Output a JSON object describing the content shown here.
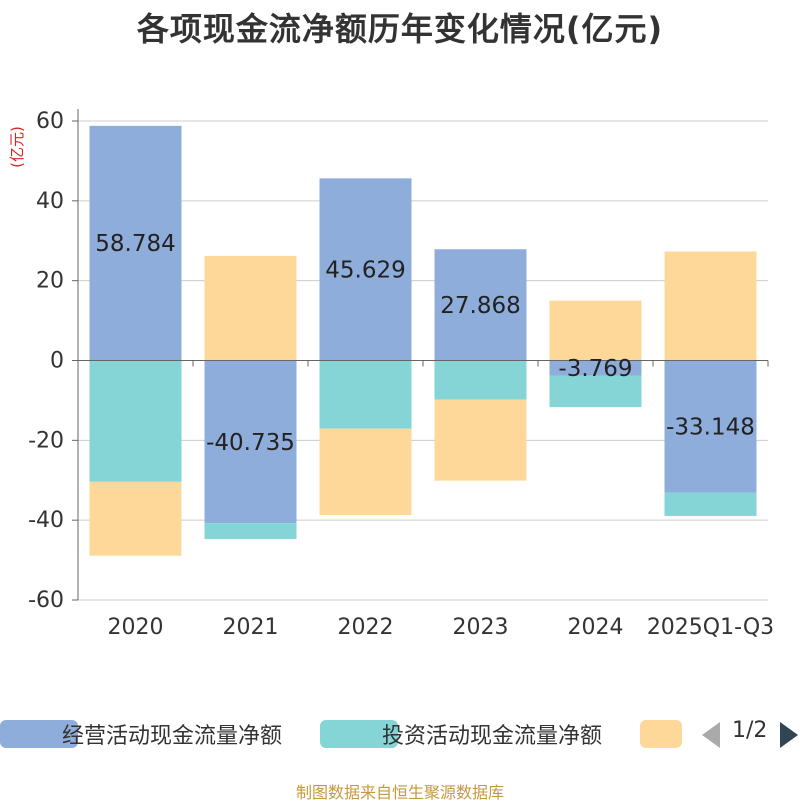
{
  "title": "各项现金流净额历年变化情况(亿元)",
  "unit_label": "(亿元)",
  "source": "制图数据来自恒生聚源数据库",
  "pager": {
    "text": "1/2",
    "prev_icon": "triangle-left-icon",
    "next_icon": "triangle-right-icon"
  },
  "legend": [
    {
      "label": "经营活动现金流量净额",
      "color": "#8eadda"
    },
    {
      "label": "投资活动现金流量净额",
      "color": "#85d5d6"
    },
    {
      "label": "",
      "color": "#fed899"
    }
  ],
  "chart_data": {
    "type": "bar",
    "stacked": true,
    "title": "各项现金流净额历年变化情况(亿元)",
    "ylabel": "(亿元)",
    "ylim": [
      -60,
      60
    ],
    "yticks": [
      60,
      40,
      20,
      0,
      -20,
      -40,
      -60
    ],
    "categories": [
      "2020",
      "2021",
      "2022",
      "2023",
      "2024",
      "2025Q1-Q3"
    ],
    "series": [
      {
        "name": "经营活动现金流量净额",
        "color": "#8eadda",
        "values": [
          58.784,
          -40.735,
          45.629,
          27.868,
          -3.769,
          -33.148
        ]
      },
      {
        "name": "投资活动现金流量净额",
        "color": "#85d5d6",
        "values": [
          -30.4,
          -4.0,
          -17.1,
          -9.8,
          -7.9,
          -5.8
        ]
      },
      {
        "name": "",
        "color": "#fed899",
        "values": [
          -18.5,
          26.2,
          -21.6,
          -20.3,
          15.0,
          27.3
        ]
      }
    ],
    "data_labels": [
      "58.784",
      "-40.735",
      "45.629",
      "27.868",
      "-3.769",
      "-33.148"
    ]
  }
}
